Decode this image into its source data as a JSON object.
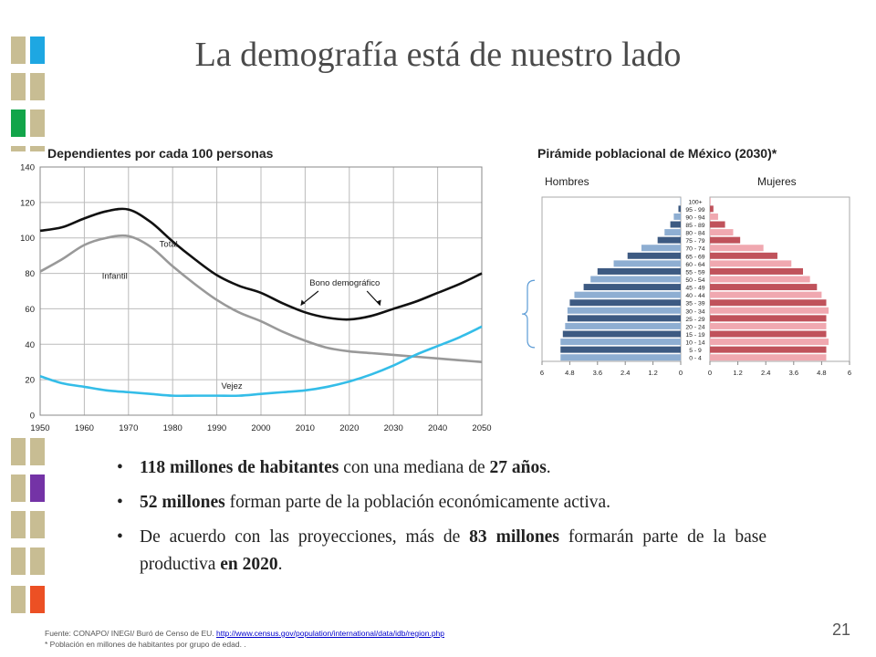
{
  "slide": {
    "title": "La demografía está de nuestro lado",
    "page_number": "21",
    "decor_colors": {
      "tan": "#c8bd93",
      "blue": "#1ea7e2",
      "green": "#12a54a",
      "purple": "#7433a6",
      "orange": "#ec5024"
    }
  },
  "bullets": [
    {
      "parts": [
        {
          "text": "118 millones de habitantes",
          "bold": true
        },
        {
          "text": " con una mediana de ",
          "bold": false
        },
        {
          "text": "27 años",
          "bold": true
        },
        {
          "text": ".",
          "bold": false
        }
      ]
    },
    {
      "parts": [
        {
          "text": "52 millones",
          "bold": true
        },
        {
          "text": " forman parte de la población económicamente activa.",
          "bold": false
        }
      ]
    },
    {
      "parts": [
        {
          "text": "De acuerdo con las proyecciones, más de ",
          "bold": false
        },
        {
          "text": "83 millones",
          "bold": true
        },
        {
          "text": " formarán parte de la base productiva ",
          "bold": false
        },
        {
          "text": "en",
          "bold": true
        },
        {
          "text": "  ",
          "bold": false
        },
        {
          "text": "2020",
          "bold": true
        },
        {
          "text": ".",
          "bold": false
        }
      ]
    }
  ],
  "footer": {
    "source_prefix": "Fuente: CONAPO/ INEGI/ Buró de Censo de EU. ",
    "source_link": "http://www.census.gov/population/international/data/idb/region.php",
    "note": "* Población en millones de habitantes por grupo de edad. ."
  },
  "chart_data": [
    {
      "type": "line",
      "title": "Dependientes por cada 100 personas",
      "x": [
        1950,
        1955,
        1960,
        1965,
        1970,
        1975,
        1980,
        1985,
        1990,
        1995,
        2000,
        2005,
        2010,
        2015,
        2020,
        2025,
        2030,
        2035,
        2040,
        2045,
        2050
      ],
      "xticks": [
        1950,
        1960,
        1970,
        1980,
        1990,
        2000,
        2010,
        2020,
        2030,
        2040,
        2050
      ],
      "yticks": [
        0,
        20,
        40,
        60,
        80,
        100,
        120,
        140
      ],
      "ylim": [
        0,
        140
      ],
      "xlim": [
        1950,
        2050
      ],
      "grid": true,
      "series": [
        {
          "name": "Total",
          "color": "#111111",
          "values": [
            104,
            106,
            111,
            115,
            116,
            109,
            98,
            88,
            79,
            73,
            69,
            63,
            58,
            55,
            54,
            56,
            60,
            64,
            69,
            74,
            80
          ]
        },
        {
          "name": "Infantil",
          "color": "#999999",
          "values": [
            81,
            88,
            96,
            100,
            101,
            95,
            84,
            74,
            65,
            58,
            53,
            47,
            42,
            38,
            36,
            35,
            34,
            33,
            32,
            31,
            30
          ]
        },
        {
          "name": "Vejez",
          "color": "#34bde8",
          "values": [
            22,
            18,
            16,
            14,
            13,
            12,
            11,
            11,
            11,
            11,
            12,
            13,
            14,
            16,
            19,
            23,
            28,
            34,
            39,
            44,
            50
          ]
        }
      ],
      "annotations": [
        "Bono demográfico"
      ]
    },
    {
      "type": "bar",
      "title": "Pirámide poblacional de México (2030)*",
      "legend": [
        "Hombres",
        "Mujeres"
      ],
      "categories": [
        "100+",
        "95 - 99",
        "90 - 94",
        "85 - 89",
        "80 - 84",
        "75 - 79",
        "70 - 74",
        "65 - 69",
        "60 - 64",
        "55 - 59",
        "50 - 54",
        "45 - 49",
        "40 - 44",
        "35 - 39",
        "30 - 34",
        "25 - 29",
        "20 - 24",
        "15 - 19",
        "10 - 14",
        "5 - 9",
        "0 - 4"
      ],
      "xticks_left": [
        "6",
        "4.8",
        "3.6",
        "2.4",
        "1.2",
        "0"
      ],
      "xticks_right": [
        "0",
        "1.2",
        "2.4",
        "3.6",
        "4.8",
        "6"
      ],
      "xlim": [
        0,
        6
      ],
      "series": [
        {
          "name": "Hombres",
          "color_dark": "#3d5a82",
          "color_light": "#8eaed2",
          "values": [
            0.02,
            0.1,
            0.3,
            0.45,
            0.7,
            1.0,
            1.7,
            2.3,
            2.9,
            3.6,
            3.9,
            4.2,
            4.6,
            4.8,
            4.9,
            4.9,
            5.0,
            5.1,
            5.2,
            5.2,
            5.2
          ]
        },
        {
          "name": "Mujeres",
          "color_dark": "#c0525b",
          "color_light": "#f0a8b0",
          "values": [
            0.03,
            0.15,
            0.35,
            0.65,
            1.0,
            1.3,
            2.3,
            2.9,
            3.5,
            4.0,
            4.3,
            4.6,
            4.8,
            5.0,
            5.1,
            5.0,
            5.0,
            5.0,
            5.1,
            5.0,
            5.0
          ]
        }
      ]
    }
  ]
}
